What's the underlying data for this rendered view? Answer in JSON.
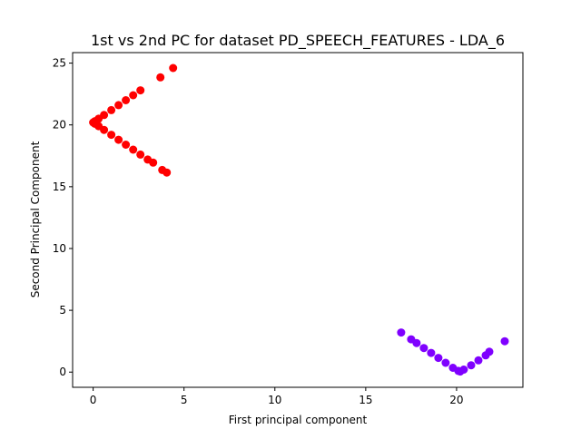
{
  "chart_data": {
    "type": "scatter",
    "title": "1st vs 2nd PC for dataset PD_SPEECH_FEATURES - LDA_6",
    "xlabel": "First principal component",
    "ylabel": "Second Principal Component",
    "xlim": [
      -1.13,
      23.65
    ],
    "ylim": [
      -1.23,
      25.85
    ],
    "xticks": [
      0,
      5,
      10,
      15,
      20
    ],
    "yticks": [
      0,
      5,
      10,
      15,
      20,
      25
    ],
    "grid": false,
    "legend": "none",
    "series": [
      {
        "color": "#ff0000",
        "points": [
          [
            4.4,
            24.6
          ],
          [
            3.7,
            23.85
          ],
          [
            2.6,
            22.8
          ],
          [
            2.2,
            22.4
          ],
          [
            1.8,
            22.0
          ],
          [
            1.4,
            21.6
          ],
          [
            1.0,
            21.2
          ],
          [
            0.6,
            20.8
          ],
          [
            0.3,
            20.5
          ],
          [
            0.1,
            20.3
          ],
          [
            0.0,
            20.2
          ],
          [
            0.1,
            20.1
          ],
          [
            0.3,
            19.9
          ],
          [
            0.6,
            19.6
          ],
          [
            1.0,
            19.2
          ],
          [
            1.4,
            18.8
          ],
          [
            1.8,
            18.4
          ],
          [
            2.2,
            18.0
          ],
          [
            2.6,
            17.6
          ],
          [
            3.0,
            17.2
          ],
          [
            3.3,
            16.95
          ],
          [
            3.8,
            16.35
          ],
          [
            4.05,
            16.15
          ]
        ]
      },
      {
        "color": "#7f00ff",
        "points": [
          [
            16.95,
            3.2
          ],
          [
            17.5,
            2.65
          ],
          [
            17.8,
            2.35
          ],
          [
            18.2,
            1.95
          ],
          [
            18.6,
            1.55
          ],
          [
            19.0,
            1.15
          ],
          [
            19.4,
            0.75
          ],
          [
            19.8,
            0.35
          ],
          [
            20.1,
            0.1
          ],
          [
            20.2,
            0.05
          ],
          [
            20.4,
            0.2
          ],
          [
            20.8,
            0.55
          ],
          [
            21.2,
            0.95
          ],
          [
            21.6,
            1.35
          ],
          [
            21.8,
            1.65
          ],
          [
            22.65,
            2.5
          ]
        ]
      }
    ]
  }
}
